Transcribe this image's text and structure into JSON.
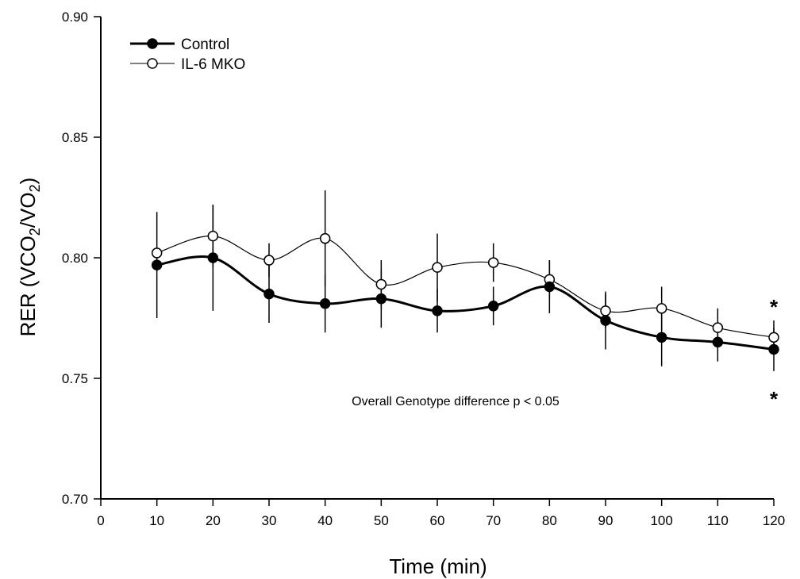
{
  "chart_data": {
    "type": "line",
    "xlabel": "Time (min)",
    "ylabel": {
      "prefix": "RER (VCO",
      "sub1": "2",
      "mid": "/VO",
      "sub2": "2",
      "suffix": ")"
    },
    "xlim": [
      0,
      120
    ],
    "ylim": [
      0.7,
      0.9
    ],
    "x_ticks": [
      "0",
      "10",
      "20",
      "30",
      "40",
      "50",
      "60",
      "70",
      "80",
      "90",
      "100",
      "110",
      "120"
    ],
    "x_tick_values": [
      0,
      10,
      20,
      30,
      40,
      50,
      60,
      70,
      80,
      90,
      100,
      110,
      120
    ],
    "y_ticks": [
      "0.70",
      "0.75",
      "0.80",
      "0.85",
      "0.90"
    ],
    "y_tick_values": [
      0.7,
      0.75,
      0.8,
      0.85,
      0.9
    ],
    "x": [
      10,
      20,
      30,
      40,
      50,
      60,
      70,
      80,
      90,
      100,
      110,
      120
    ],
    "series": [
      {
        "name": "IL-6 MKO",
        "marker": "open-circle",
        "line_weight": "thin",
        "values": [
          0.802,
          0.809,
          0.799,
          0.808,
          0.789,
          0.796,
          0.798,
          0.791,
          0.778,
          0.779,
          0.771,
          0.767
        ],
        "error": [
          null,
          0.013,
          0.007,
          0.02,
          0.01,
          0.014,
          0.008,
          0.008,
          0.007,
          0.009,
          0.008,
          0.007
        ]
      },
      {
        "name": "Control",
        "marker": "filled-circle",
        "line_weight": "thick",
        "values": [
          0.797,
          0.8,
          0.785,
          0.781,
          0.783,
          0.778,
          0.78,
          0.788,
          0.774,
          0.767,
          0.765,
          0.762
        ],
        "error": [
          0.022,
          0.022,
          0.012,
          0.012,
          0.012,
          0.009,
          0.008,
          0.011,
          0.012,
          0.012,
          0.008,
          0.009
        ]
      }
    ],
    "annotation": "Overall Genotype difference p < 0.05",
    "significance_markers": [
      {
        "x": 120,
        "symbol": "*",
        "position": "above"
      },
      {
        "x": 120,
        "symbol": "*",
        "position": "below"
      }
    ],
    "legend_position": "top-left",
    "grid": false
  }
}
